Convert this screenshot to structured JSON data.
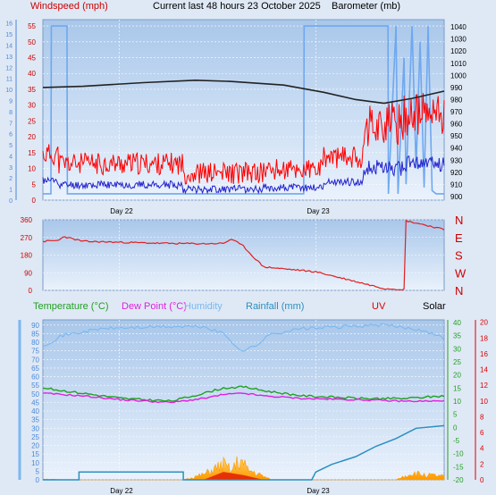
{
  "header": {
    "windspeed_label": "Windspeed (mph)",
    "title": "Current last 48 hours 23 October 2025",
    "barometer_label": "Barometer (mb)"
  },
  "legend2": {
    "temperature": "Temperature (°C)",
    "dewpoint": "Dew Point (°C)",
    "humidity": "Humidity",
    "rainfall": "Rainfall (mm)",
    "uv": "UV",
    "solar": "Solar"
  },
  "colors": {
    "background": "#dfe9f5",
    "plot_top": "#a9c7ea",
    "plot_bottom": "#eaf2fc",
    "grid": "#ffffff",
    "wind_gust": "#ff0000",
    "wind_avg": "#2222cc",
    "barometer": "#222222",
    "wind_dir": "#e02020",
    "temperature": "#21a021",
    "dewpoint": "#e020e0",
    "humidity": "#7ab8f0",
    "rainfall": "#2a8fbf",
    "solar": "#ffaa00",
    "uv": "#dd0000",
    "beaufort_bars": "#6fa8f0"
  },
  "chart_data": [
    {
      "type": "line",
      "title": "Current last 48 hours 23 October 2025",
      "x_labels": [
        "Day 22",
        "Day 23"
      ],
      "y_left": {
        "label": "Windspeed (mph)",
        "ticks": [
          0,
          5,
          10,
          15,
          20,
          25,
          30,
          35,
          40,
          45,
          50,
          55
        ]
      },
      "y_left_outer": {
        "ticks": [
          0,
          1,
          2,
          3,
          4,
          5,
          6,
          7,
          8,
          9,
          10,
          11,
          12,
          13,
          14,
          15,
          16
        ]
      },
      "y_right": {
        "label": "Barometer (mb)",
        "ticks": [
          900,
          910,
          920,
          930,
          940,
          950,
          960,
          970,
          980,
          990,
          1000,
          1010,
          1020,
          1030,
          1040
        ]
      },
      "series": [
        {
          "name": "Windspeed gust",
          "axis": "left",
          "approx": "5-15 mph on day 22, rising to 15-30 mph late day 23"
        },
        {
          "name": "Windspeed average",
          "axis": "left",
          "approx": "2-6 mph, rising to ~10 mph late day 23"
        },
        {
          "name": "Barometer",
          "axis": "right",
          "points": [
            [
              0,
              990
            ],
            [
              0.1,
              991
            ],
            [
              0.25,
              994
            ],
            [
              0.38,
              996
            ],
            [
              0.47,
              995
            ],
            [
              0.6,
              992
            ],
            [
              0.7,
              986
            ],
            [
              0.78,
              980
            ],
            [
              0.85,
              977
            ],
            [
              0.92,
              981
            ],
            [
              1,
              987
            ]
          ]
        }
      ]
    },
    {
      "type": "line",
      "y_left": {
        "ticks": [
          "0",
          "90",
          "180",
          "270",
          "360"
        ]
      },
      "y_right": {
        "ticks": [
          "N",
          "W",
          "S",
          "E",
          "N"
        ]
      },
      "series": [
        {
          "name": "Wind direction",
          "points": [
            [
              0,
              250
            ],
            [
              0.04,
              255
            ],
            [
              0.05,
              275
            ],
            [
              0.1,
              250
            ],
            [
              0.2,
              245
            ],
            [
              0.3,
              240
            ],
            [
              0.4,
              238
            ],
            [
              0.45,
              240
            ],
            [
              0.47,
              262
            ],
            [
              0.5,
              225
            ],
            [
              0.52,
              180
            ],
            [
              0.55,
              120
            ],
            [
              0.6,
              110
            ],
            [
              0.68,
              95
            ],
            [
              0.75,
              60
            ],
            [
              0.8,
              35
            ],
            [
              0.85,
              10
            ],
            [
              0.9,
              5
            ],
            [
              0.905,
              355
            ],
            [
              0.95,
              335
            ],
            [
              1,
              310
            ]
          ]
        }
      ]
    },
    {
      "type": "area",
      "y_left": {
        "ticks": [
          0,
          5,
          10,
          15,
          20,
          25,
          30,
          35,
          40,
          45,
          50,
          55,
          60,
          65,
          70,
          75,
          80,
          85,
          90
        ]
      },
      "y_right_temp": {
        "ticks": [
          -20,
          -15,
          -10,
          -5,
          0,
          5,
          10,
          15,
          20,
          25,
          30,
          35,
          40
        ]
      },
      "y_right_uv": {
        "ticks": [
          0,
          2,
          4,
          6,
          8,
          10,
          12,
          14,
          16,
          18,
          20
        ]
      },
      "series": [
        {
          "name": "Humidity",
          "points": [
            [
              0,
              78
            ],
            [
              0.05,
              84
            ],
            [
              0.15,
              88
            ],
            [
              0.3,
              89
            ],
            [
              0.4,
              89
            ],
            [
              0.45,
              85
            ],
            [
              0.48,
              78
            ],
            [
              0.5,
              75
            ],
            [
              0.53,
              78
            ],
            [
              0.57,
              85
            ],
            [
              0.65,
              88
            ],
            [
              0.85,
              90
            ],
            [
              0.95,
              87
            ],
            [
              1,
              82
            ]
          ]
        },
        {
          "name": "Temperature",
          "points": [
            [
              0,
              15
            ],
            [
              0.1,
              13
            ],
            [
              0.2,
              11
            ],
            [
              0.32,
              10
            ],
            [
              0.4,
              13
            ],
            [
              0.45,
              15
            ],
            [
              0.5,
              15.5
            ],
            [
              0.55,
              14
            ],
            [
              0.65,
              12
            ],
            [
              0.8,
              11
            ],
            [
              0.9,
              11
            ],
            [
              1,
              12
            ]
          ]
        },
        {
          "name": "Dew Point",
          "points": [
            [
              0,
              13
            ],
            [
              0.1,
              12
            ],
            [
              0.2,
              10.5
            ],
            [
              0.32,
              9.5
            ],
            [
              0.4,
              11
            ],
            [
              0.45,
              12.5
            ],
            [
              0.5,
              13
            ],
            [
              0.55,
              12
            ],
            [
              0.65,
              11
            ],
            [
              0.8,
              10.5
            ],
            [
              0.9,
              10
            ],
            [
              1,
              10
            ]
          ]
        },
        {
          "name": "Rainfall",
          "points": [
            [
              0,
              0
            ],
            [
              0.09,
              0
            ],
            [
              0.09,
              1.5
            ],
            [
              0.35,
              1.5
            ],
            [
              0.35,
              0
            ],
            [
              0.67,
              0
            ],
            [
              0.68,
              1.5
            ],
            [
              0.72,
              3
            ],
            [
              0.78,
              4.5
            ],
            [
              0.83,
              6.5
            ],
            [
              0.88,
              8
            ],
            [
              0.93,
              10
            ],
            [
              1,
              10.5
            ]
          ]
        },
        {
          "name": "Solar",
          "points": [
            [
              0,
              0.5
            ],
            [
              0.05,
              0
            ],
            [
              0.35,
              0
            ],
            [
              0.4,
              3
            ],
            [
              0.45,
              9
            ],
            [
              0.47,
              5
            ],
            [
              0.49,
              12
            ],
            [
              0.51,
              6
            ],
            [
              0.53,
              4
            ],
            [
              0.57,
              0
            ],
            [
              0.88,
              0
            ],
            [
              0.92,
              4
            ],
            [
              0.95,
              3
            ],
            [
              1,
              2
            ]
          ]
        },
        {
          "name": "UV",
          "points": [
            [
              0,
              0
            ],
            [
              0.4,
              0
            ],
            [
              0.45,
              1
            ],
            [
              0.5,
              0.6
            ],
            [
              0.55,
              0
            ],
            [
              1,
              0
            ]
          ]
        }
      ],
      "x_labels": [
        "Day 22",
        "Day 23"
      ]
    }
  ]
}
